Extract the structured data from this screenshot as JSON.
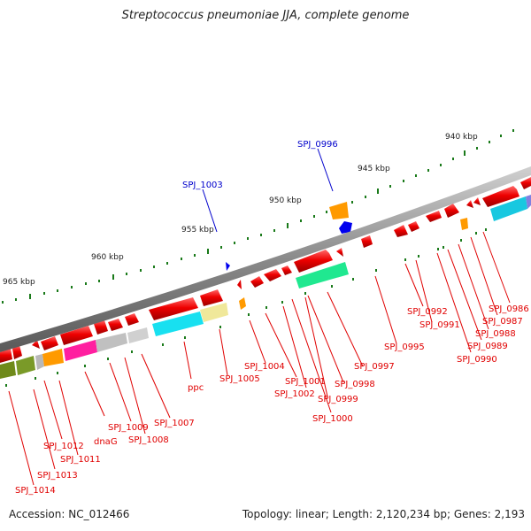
{
  "title": "Streptococcus pneumoniae JJA, complete genome",
  "accession": "Accession: NC_012466",
  "topology": "Topology: linear; Length: 2,120,234 bp; Genes: 2,193",
  "kbp_labels": [
    "940 kbp",
    "945 kbp",
    "950 kbp",
    "955 kbp",
    "960 kbp",
    "965 kbp"
  ],
  "genes_red": [
    "SPJ_1014",
    "SPJ_1013",
    "SPJ_1012",
    "SPJ_1011",
    "dnaG",
    "SPJ_1009",
    "SPJ_1008",
    "SPJ_1007",
    "ppc",
    "SPJ_1005",
    "SPJ_1004",
    "SPJ_1001",
    "SPJ_1002",
    "SPJ_0999",
    "SPJ_1000",
    "SPJ_0998",
    "SPJ_0997",
    "SPJ_0995",
    "SPJ_0992",
    "SPJ_0991",
    "SPJ_0990",
    "SPJ_0989",
    "SPJ_0988",
    "SPJ_0987",
    "SPJ_0986"
  ],
  "genes_blue": [
    "SPJ_1003",
    "SPJ_0996"
  ],
  "colors": {
    "gene_red": "#e00000",
    "gene_blue": "#0000cc",
    "backbone": "#808080",
    "tick": "#1a7a1a"
  }
}
